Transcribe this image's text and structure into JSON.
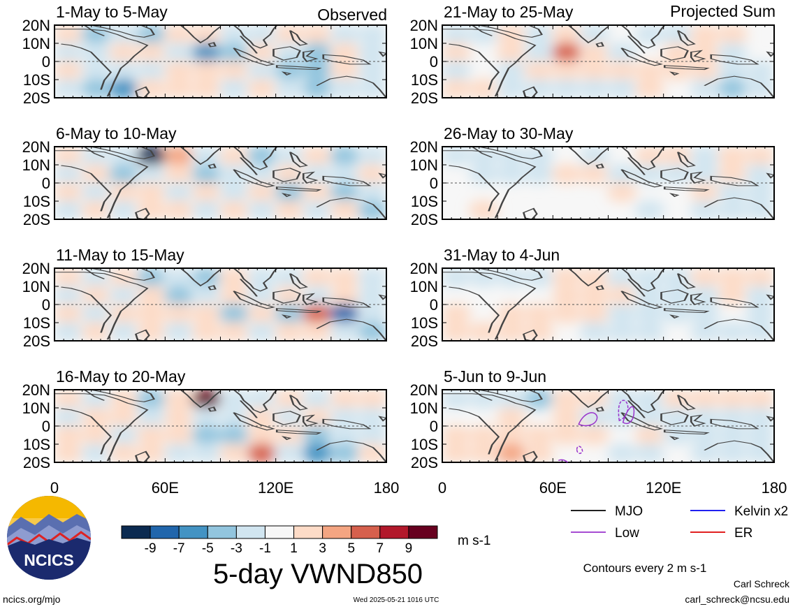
{
  "chart_data": {
    "type": "heatmap",
    "variable": "5-day VWND850",
    "units": "m s-1",
    "colorbar": {
      "tick_labels": [
        "-9",
        "-7",
        "-5",
        "-3",
        "-1",
        "1",
        "3",
        "5",
        "7",
        "9"
      ],
      "colors": [
        "#0b2a50",
        "#2166ac",
        "#4393c3",
        "#92c5de",
        "#d1e5f0",
        "#f7f7f7",
        "#fddbc7",
        "#f4a582",
        "#d6604d",
        "#b2182b",
        "#67001f"
      ]
    },
    "lat_ticks": [
      "20N",
      "10N",
      "0",
      "10S",
      "20S"
    ],
    "lon_ticks": [
      "0",
      "60E",
      "120E",
      "180"
    ],
    "left_header": "Observed",
    "right_header": "Projected Sum",
    "panels_left": [
      {
        "title": "1-May to 5-May",
        "pattern": [
          [
            0.2,
            -0.6,
            -0.3,
            -0.6,
            0.5,
            0.3,
            -0.4,
            -0.3,
            0.2,
            0.3,
            -0.4,
            -0.3
          ],
          [
            -0.4,
            -0.3,
            0.2,
            0.3,
            -0.3,
            -1.1,
            -0.7,
            0.2,
            -0.3,
            -0.6,
            0.2,
            -0.3
          ],
          [
            0.2,
            -0.4,
            -0.3,
            -0.2,
            0.3,
            0.2,
            0.4,
            -0.3,
            -0.7,
            -0.5,
            0.3,
            -0.2
          ],
          [
            -0.3,
            -0.8,
            -1.0,
            0.2,
            0.3,
            0.4,
            -0.3,
            0.4,
            -0.4,
            -0.6,
            -0.3,
            -0.2
          ]
        ]
      },
      {
        "title": "6-May to 10-May",
        "pattern": [
          [
            0.2,
            -0.4,
            -0.3,
            -1.8,
            0.6,
            -0.4,
            0.3,
            -0.5,
            -0.3,
            0.2,
            -0.5,
            -0.3
          ],
          [
            -0.3,
            0.2,
            -0.5,
            -0.4,
            0.3,
            -0.8,
            -0.4,
            -0.3,
            0.3,
            -0.4,
            -0.3,
            0.2
          ],
          [
            0.3,
            -0.3,
            0.4,
            0.2,
            -0.3,
            0.2,
            -0.2,
            0.3,
            -0.6,
            0.4,
            -0.8,
            -0.3
          ],
          [
            -0.4,
            0.3,
            -0.3,
            0.2,
            0.3,
            -0.3,
            0.2,
            -0.3,
            0.4,
            -0.4,
            0.2,
            -0.5
          ]
        ]
      },
      {
        "title": "11-May to 15-May",
        "pattern": [
          [
            0.3,
            -0.4,
            0.3,
            -0.6,
            -0.4,
            -0.7,
            0.2,
            -0.3,
            -0.3,
            0.2,
            0.2,
            -0.2
          ],
          [
            -0.4,
            0.3,
            -0.3,
            0.4,
            -0.5,
            -0.3,
            0.3,
            -0.3,
            0.2,
            -0.3,
            0.2,
            -0.3
          ],
          [
            0.3,
            -0.3,
            0.3,
            0.2,
            0.3,
            0.4,
            -0.8,
            0.3,
            -0.5,
            1.0,
            -1.4,
            -0.3
          ],
          [
            -0.3,
            0.4,
            -0.3,
            0.3,
            -0.3,
            0.2,
            0.3,
            -0.4,
            0.2,
            0.4,
            -0.3,
            -0.5
          ]
        ]
      },
      {
        "title": "16-May to 20-May",
        "pattern": [
          [
            0.3,
            -0.3,
            0.4,
            -0.8,
            0.3,
            1.6,
            -0.3,
            -0.3,
            0.3,
            -0.4,
            0.3,
            0.2
          ],
          [
            -0.3,
            0.2,
            0.3,
            -0.4,
            0.2,
            -0.3,
            -0.4,
            0.3,
            -0.3,
            0.2,
            -0.3,
            -0.2
          ],
          [
            0.2,
            0.3,
            -0.3,
            0.3,
            0.4,
            -0.6,
            -0.7,
            0.3,
            0.2,
            -0.5,
            -0.4,
            -0.3
          ],
          [
            0.3,
            -0.3,
            0.3,
            0.2,
            -0.3,
            -0.4,
            0.3,
            1.0,
            -0.3,
            -1.0,
            -0.5,
            0.2
          ]
        ]
      }
    ],
    "panels_right": [
      {
        "title": "21-May to 25-May",
        "pattern": [
          [
            -0.3,
            -0.3,
            0.2,
            -0.3,
            0.2,
            -0.3,
            0.1,
            -0.3,
            -0.4,
            0.3,
            0.2,
            0.1
          ],
          [
            0.2,
            0.1,
            0.3,
            -0.2,
            0.9,
            0.5,
            -0.4,
            0.1,
            0.4,
            0.3,
            -0.2,
            0.1
          ],
          [
            -0.2,
            0.1,
            -0.2,
            0.2,
            0.4,
            0.2,
            0.3,
            0.2,
            0.5,
            0.2,
            -0.3,
            -0.2
          ],
          [
            0.2,
            0.2,
            -0.2,
            -0.3,
            -0.2,
            -0.2,
            -0.3,
            0.2,
            0.1,
            -0.3,
            -0.5,
            -0.3
          ]
        ]
      },
      {
        "title": "26-May to 30-May",
        "pattern": [
          [
            -0.3,
            -0.4,
            -0.4,
            -0.3,
            0.1,
            -0.3,
            0.1,
            0.3,
            0.3,
            -0.4,
            0.3,
            0.3
          ],
          [
            0.0,
            -0.3,
            -0.3,
            -0.4,
            0.2,
            0.3,
            -0.3,
            -0.3,
            -0.3,
            -0.3,
            0.2,
            -0.2
          ],
          [
            0.1,
            0.0,
            0.1,
            0.0,
            0.1,
            0.1,
            0.2,
            0.0,
            0.1,
            0.2,
            -0.4,
            -0.3
          ],
          [
            0.1,
            0.2,
            0.0,
            0.1,
            0.0,
            0.1,
            0.0,
            -0.2,
            0.1,
            -0.3,
            -0.4,
            -0.2
          ]
        ]
      },
      {
        "title": "31-May to 4-Jun",
        "pattern": [
          [
            -0.2,
            -0.3,
            -0.3,
            -0.3,
            0.3,
            0.3,
            -0.3,
            -0.4,
            -0.2,
            0.3,
            0.4,
            0.3
          ],
          [
            0.0,
            0.1,
            0.0,
            0.0,
            0.4,
            0.5,
            0.3,
            -0.3,
            -0.3,
            -0.3,
            0.2,
            -0.2
          ],
          [
            0.2,
            0.1,
            0.3,
            0.2,
            0.4,
            0.2,
            -0.3,
            -0.3,
            -0.2,
            -0.3,
            0.1,
            -0.3
          ],
          [
            0.3,
            0.3,
            0.4,
            0.3,
            0.1,
            -0.2,
            -0.2,
            -0.3,
            0.0,
            -0.2,
            -0.3,
            -0.2
          ]
        ]
      },
      {
        "title": "5-Jun to 9-Jun",
        "pattern": [
          [
            -0.2,
            -0.3,
            -0.3,
            -0.5,
            0.3,
            0.3,
            -0.4,
            -0.3,
            0.3,
            0.2,
            0.3,
            0.4
          ],
          [
            0.0,
            0.1,
            0.2,
            0.0,
            0.5,
            -0.3,
            -0.4,
            -0.3,
            -0.3,
            -0.3,
            -0.3,
            -0.2
          ],
          [
            0.3,
            0.3,
            0.5,
            0.4,
            0.5,
            0.2,
            0.1,
            0.2,
            -0.3,
            -0.4,
            -0.2,
            -0.3
          ],
          [
            0.5,
            0.5,
            0.6,
            0.5,
            0.1,
            0.0,
            -0.3,
            -0.3,
            0.0,
            -0.2,
            -0.4,
            -0.3
          ]
        ]
      }
    ],
    "legend": [
      {
        "label": "MJO",
        "color": "#000000",
        "style": "solid"
      },
      {
        "label": "Kelvin x2",
        "color": "#0000ee",
        "style": "solid"
      },
      {
        "label": "Low",
        "color": "#9933cc",
        "style": "solid"
      },
      {
        "label": "ER",
        "color": "#dd0000",
        "style": "solid"
      }
    ],
    "contour_note": "Contours every 2 m s-1"
  },
  "footer": {
    "logo_text": "NCICS",
    "url": "ncics.org/mjo",
    "timestamp": "Wed 2025-05-21 1016 UTC",
    "author": "Carl Schreck",
    "email": "carl_schreck@ncsu.edu"
  }
}
